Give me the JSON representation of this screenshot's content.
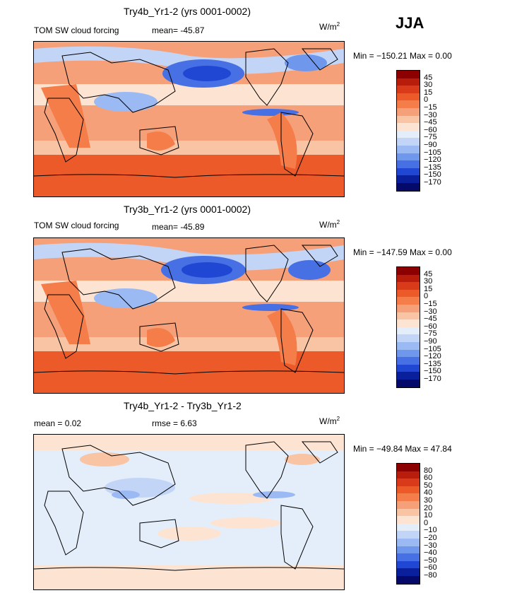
{
  "season": "JJA",
  "panels": [
    {
      "title": "Try4b_Yr1-2 (yrs 0001-0002)",
      "left_label": "TOM SW cloud forcing",
      "mean_label": "mean= -45.87",
      "mean": -45.87,
      "units": "W/m",
      "units_sup": "2",
      "minmax": "Min = −150.21 Max =     0.00",
      "min": -150.21,
      "max": 0.0,
      "colorbar_labels": [
        "45",
        "30",
        "15",
        "0",
        "−15",
        "−30",
        "−45",
        "−60",
        "−75",
        "−90",
        "−105",
        "−120",
        "−135",
        "−150",
        "−170"
      ]
    },
    {
      "title": "Try3b_Yr1-2 (yrs 0001-0002)",
      "left_label": "TOM SW cloud forcing",
      "mean_label": "mean= -45.89",
      "mean": -45.89,
      "units": "W/m",
      "units_sup": "2",
      "minmax": "Min = −147.59 Max =     0.00",
      "min": -147.59,
      "max": 0.0,
      "colorbar_labels": [
        "45",
        "30",
        "15",
        "0",
        "−15",
        "−30",
        "−45",
        "−60",
        "−75",
        "−90",
        "−105",
        "−120",
        "−135",
        "−150",
        "−170"
      ]
    },
    {
      "title": "Try4b_Yr1-2 - Try3b_Yr1-2",
      "mean_label": "mean =    0.02",
      "mean": 0.02,
      "rmse_label": "rmse =    6.63",
      "rmse": 6.63,
      "units": "W/m",
      "units_sup": "2",
      "minmax": "Min = −49.84 Max =  47.84",
      "min": -49.84,
      "max": 47.84,
      "colorbar_labels": [
        "80",
        "60",
        "50",
        "40",
        "30",
        "20",
        "10",
        "0",
        "−10",
        "−20",
        "−30",
        "−40",
        "−50",
        "−60",
        "−80"
      ]
    }
  ],
  "chart_data": [
    {
      "type": "heatmap",
      "title": "Try4b_Yr1-2 (yrs 0001-0002)",
      "variable": "TOM SW cloud forcing",
      "units": "W/m2",
      "mean": -45.87,
      "min": -150.21,
      "max": 0.0,
      "contour_levels": [
        45,
        30,
        15,
        0,
        -15,
        -30,
        -45,
        -60,
        -75,
        -90,
        -105,
        -120,
        -135,
        -150,
        -170
      ]
    },
    {
      "type": "heatmap",
      "title": "Try3b_Yr1-2 (yrs 0001-0002)",
      "variable": "TOM SW cloud forcing",
      "units": "W/m2",
      "mean": -45.89,
      "min": -147.59,
      "max": 0.0,
      "contour_levels": [
        45,
        30,
        15,
        0,
        -15,
        -30,
        -45,
        -60,
        -75,
        -90,
        -105,
        -120,
        -135,
        -150,
        -170
      ]
    },
    {
      "type": "heatmap",
      "title": "Try4b_Yr1-2 - Try3b_Yr1-2",
      "units": "W/m2",
      "mean": 0.02,
      "rmse": 6.63,
      "min": -49.84,
      "max": 47.84,
      "contour_levels": [
        80,
        60,
        50,
        40,
        30,
        20,
        10,
        0,
        -10,
        -20,
        -30,
        -40,
        -50,
        -60,
        -80
      ]
    }
  ],
  "colors": {
    "abs_scale": [
      "#8b0000",
      "#b81c0a",
      "#d93a1a",
      "#ec5a2a",
      "#f47d4a",
      "#f5a079",
      "#f8c4a4",
      "#fde4d2",
      "#e4eefb",
      "#c2d5f7",
      "#9bbaf3",
      "#6f97ec",
      "#4670e3",
      "#1f47d4",
      "#0a1f9c",
      "#050a6a"
    ],
    "diff_scale": [
      "#8b0000",
      "#b81c0a",
      "#d93a1a",
      "#ec5a2a",
      "#f47d4a",
      "#f5a079",
      "#f8c4a4",
      "#fde4d2",
      "#e4eefb",
      "#c2d5f7",
      "#9bbaf3",
      "#6f97ec",
      "#4670e3",
      "#1f47d4",
      "#0a1f9c",
      "#050a6a"
    ]
  }
}
